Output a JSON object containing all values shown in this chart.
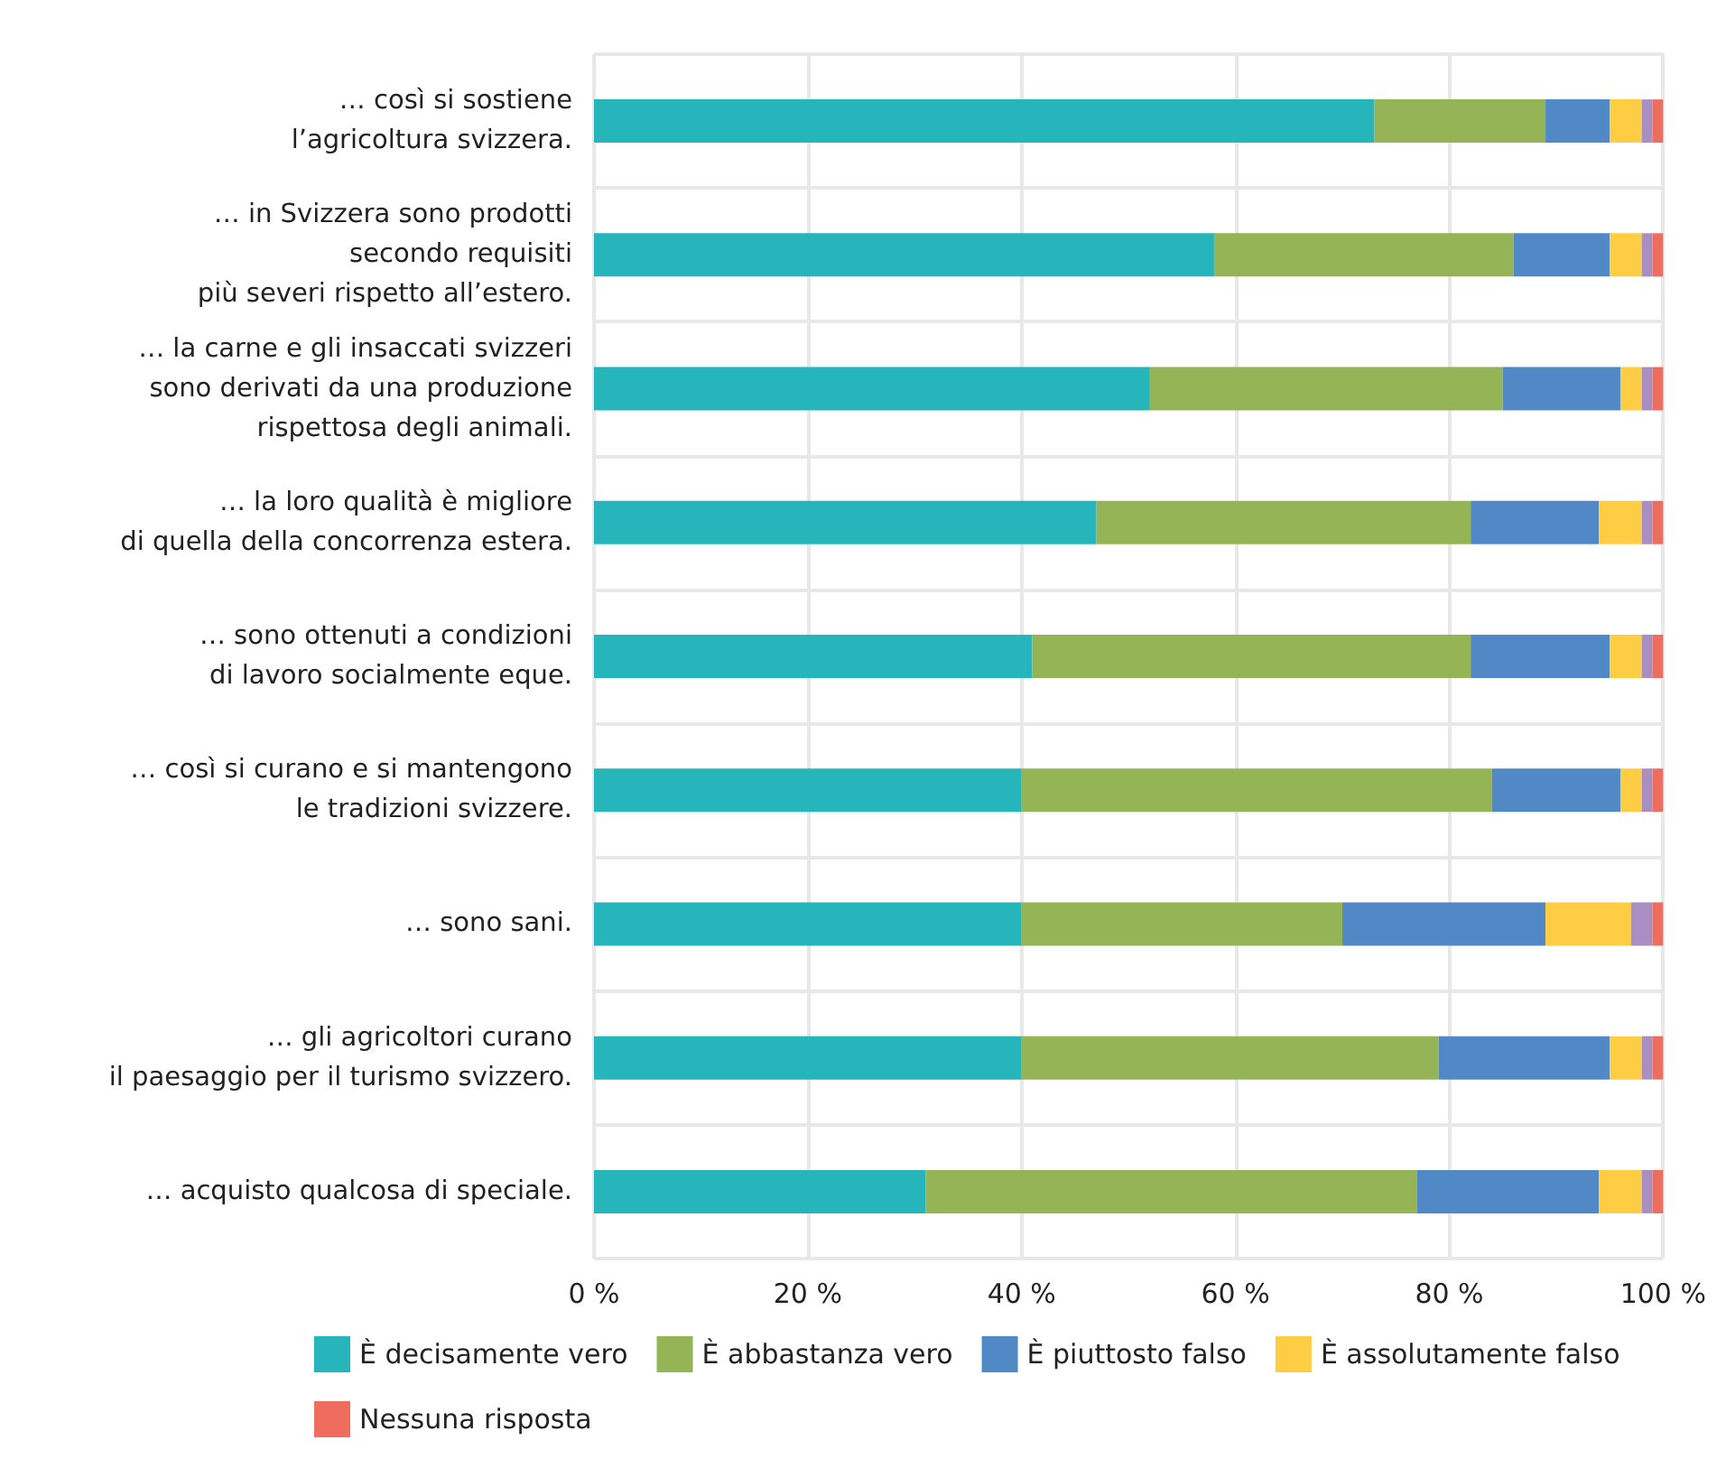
{
  "chart_data": {
    "type": "bar",
    "orientation": "horizontal",
    "stacked": true,
    "categories": [
      "… così si sostiene\nl’agricoltura svizzera.",
      "… in Svizzera sono prodotti\nsecondo requisiti\npiù severi rispetto all’estero.",
      "… la carne e gli insaccati svizzeri\nsono derivati da una produzione\nrispettosa degli animali.",
      "… la loro qualità è migliore\ndi quella della concorrenza estera.",
      "… sono ottenuti a condizioni\ndi lavoro socialmente eque.",
      "… così si curano e si mantengono\nle tradizioni svizzere.",
      "… sono sani.",
      "… gli agricoltori curano\nil paesaggio per il turismo svizzero.",
      "… acquisto qualcosa di speciale."
    ],
    "series": [
      {
        "name": "È decisamente vero",
        "color": "#26b5ba",
        "values": [
          73,
          58,
          52,
          47,
          41,
          40,
          40,
          40,
          31
        ]
      },
      {
        "name": "È abbastanza vero",
        "color": "#95b455",
        "values": [
          16,
          28,
          33,
          35,
          41,
          44,
          30,
          39,
          46
        ]
      },
      {
        "name": "È piuttosto falso",
        "color": "#5189c6",
        "values": [
          6,
          9,
          11,
          12,
          13,
          12,
          19,
          16,
          17
        ]
      },
      {
        "name": "È assolutamente falso",
        "color": "#fecd44",
        "values": [
          3,
          3,
          2,
          4,
          3,
          2,
          8,
          3,
          4
        ]
      },
      {
        "color": "#a88ec2",
        "values": [
          1,
          1,
          1,
          1,
          1,
          1,
          2,
          1,
          1
        ]
      },
      {
        "name": "Nessuna risposta",
        "color": "#ef6d5e",
        "values": [
          1,
          1,
          1,
          1,
          1,
          1,
          1,
          1,
          1
        ]
      }
    ],
    "xlim": [
      0,
      100
    ],
    "xticks": [
      {
        "value": 0,
        "label": "0 %"
      },
      {
        "value": 20,
        "label": "20 %"
      },
      {
        "value": 40,
        "label": "40 %"
      },
      {
        "value": 60,
        "label": "60 %"
      },
      {
        "value": 80,
        "label": "80 %"
      },
      {
        "value": 100,
        "label": "100 %"
      }
    ],
    "grid": true,
    "legend": "bottom"
  }
}
